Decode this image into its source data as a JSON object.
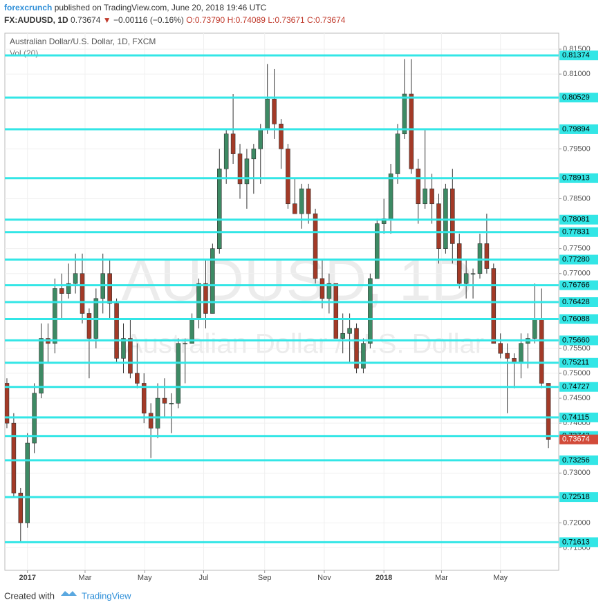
{
  "header": {
    "author": "forexcrunch",
    "published": "published on TradingView.com, June 20, 2018 19:46 UTC",
    "symbol": "FX:AUDUSD, 1D",
    "last": "0.73674",
    "arrow": "▼",
    "change": "−0.00116 (−0.16%)",
    "open": "O:0.73790",
    "high": "H:0.74089",
    "low": "L:0.73671",
    "close": "C:0.73674"
  },
  "footer": {
    "created": "Created with",
    "brand": "TradingView"
  },
  "chart_data": {
    "type": "candlestick",
    "title": "Australian Dollar/U.S. Dollar, 1D, FXCM",
    "indicator": "Vol (20)",
    "watermark": "AUDUSD, 1D",
    "watermark_sub": "Australian Dollar / U.S. Dollar",
    "up_color": "#3d8a64",
    "down_color": "#a33a27",
    "level_color": "#33e6e6",
    "grid": true,
    "xlim": [
      -3.3,
      77.2
    ],
    "xticks": [
      {
        "value": 0,
        "label": "2017"
      },
      {
        "value": 8.4,
        "label": "Mar"
      },
      {
        "value": 17.1,
        "label": "May"
      },
      {
        "value": 25.7,
        "label": "Jul"
      },
      {
        "value": 34.6,
        "label": "Sep"
      },
      {
        "value": 43.3,
        "label": "Nov"
      },
      {
        "value": 52,
        "label": "2018"
      },
      {
        "value": 60.4,
        "label": "Mar"
      },
      {
        "value": 69,
        "label": "May"
      }
    ],
    "ylim": [
      0.7105,
      0.8182
    ],
    "yticks": [
      {
        "value": 0.815,
        "label": "0.81500"
      },
      {
        "value": 0.81,
        "label": "0.81000"
      },
      {
        "value": 0.795,
        "label": "0.79500"
      },
      {
        "value": 0.785,
        "label": "0.78500"
      },
      {
        "value": 0.775,
        "label": "0.77500"
      },
      {
        "value": 0.77,
        "label": "0.77000"
      },
      {
        "value": 0.755,
        "label": "0.75500"
      },
      {
        "value": 0.75,
        "label": "0.75000"
      },
      {
        "value": 0.745,
        "label": "0.74500"
      },
      {
        "value": 0.74,
        "label": "0.74000"
      },
      {
        "value": 0.73,
        "label": "0.73000"
      },
      {
        "value": 0.72,
        "label": "0.72000"
      },
      {
        "value": 0.715,
        "label": "0.71500"
      }
    ],
    "levels": [
      0.81374,
      0.80529,
      0.79894,
      0.78913,
      0.78081,
      0.77831,
      {
        "value": 0.7728,
        "label": "0.77280"
      },
      0.76766,
      0.76428,
      0.76088,
      {
        "value": 0.7566,
        "label": "0.75660"
      },
      0.75211,
      0.74727,
      0.74115,
      0.73743,
      0.73256,
      0.72518,
      0.71613
    ],
    "last_price": 0.73674,
    "x": [
      -3,
      -2,
      -1,
      0,
      1,
      2,
      3,
      4,
      5,
      6,
      7,
      8,
      9,
      10,
      11,
      12,
      13,
      14,
      15,
      16,
      17,
      18,
      19,
      20,
      21,
      22,
      23,
      24,
      25,
      26,
      27,
      28,
      29,
      30,
      31,
      32,
      33,
      34,
      35,
      36,
      37,
      38,
      39,
      40,
      41,
      42,
      43,
      44,
      45,
      46,
      47,
      48,
      49,
      50,
      51,
      52,
      53,
      54,
      55,
      56,
      57,
      58,
      59,
      60,
      61,
      62,
      63,
      64,
      65,
      66,
      67,
      68,
      69,
      70,
      71,
      72,
      73,
      74,
      75,
      76
    ],
    "open": [
      0.748,
      0.74,
      0.726,
      0.72,
      0.736,
      0.746,
      0.757,
      0.756,
      0.767,
      0.766,
      0.768,
      0.77,
      0.762,
      0.757,
      0.765,
      0.77,
      0.764,
      0.753,
      0.757,
      0.75,
      0.748,
      0.742,
      0.739,
      0.745,
      0.744,
      0.744,
      0.756,
      0.756,
      0.761,
      0.768,
      0.762,
      0.775,
      0.791,
      0.798,
      0.794,
      0.788,
      0.793,
      0.795,
      0.799,
      0.805,
      0.8,
      0.795,
      0.784,
      0.782,
      0.787,
      0.782,
      0.769,
      0.765,
      0.768,
      0.757,
      0.758,
      0.759,
      0.751,
      0.756,
      0.769,
      0.78,
      0.781,
      0.79,
      0.798,
      0.806,
      0.791,
      0.784,
      0.787,
      0.784,
      0.775,
      0.787,
      0.776,
      0.768,
      0.77,
      0.77,
      0.776,
      0.771,
      0.756,
      0.754,
      0.753,
      0.752,
      0.756,
      0.757,
      0.761,
      0.748
    ],
    "high": [
      0.749,
      0.742,
      0.727,
      0.738,
      0.748,
      0.76,
      0.76,
      0.769,
      0.77,
      0.772,
      0.774,
      0.774,
      0.763,
      0.767,
      0.774,
      0.773,
      0.765,
      0.76,
      0.761,
      0.756,
      0.75,
      0.744,
      0.748,
      0.749,
      0.746,
      0.757,
      0.757,
      0.762,
      0.769,
      0.773,
      0.776,
      0.795,
      0.799,
      0.806,
      0.796,
      0.795,
      0.796,
      0.8,
      0.812,
      0.811,
      0.801,
      0.796,
      0.789,
      0.788,
      0.788,
      0.783,
      0.773,
      0.77,
      0.768,
      0.762,
      0.762,
      0.76,
      0.757,
      0.77,
      0.781,
      0.785,
      0.792,
      0.8,
      0.813,
      0.813,
      0.793,
      0.799,
      0.79,
      0.786,
      0.788,
      0.791,
      0.778,
      0.773,
      0.771,
      0.778,
      0.782,
      0.772,
      0.758,
      0.756,
      0.754,
      0.758,
      0.758,
      0.768,
      0.767,
      0.748
    ],
    "low": [
      0.739,
      0.725,
      0.716,
      0.719,
      0.734,
      0.745,
      0.752,
      0.754,
      0.761,
      0.765,
      0.766,
      0.76,
      0.749,
      0.755,
      0.762,
      0.761,
      0.752,
      0.75,
      0.749,
      0.747,
      0.74,
      0.733,
      0.737,
      0.741,
      0.738,
      0.743,
      0.748,
      0.756,
      0.759,
      0.759,
      0.762,
      0.774,
      0.788,
      0.792,
      0.785,
      0.783,
      0.786,
      0.788,
      0.798,
      0.797,
      0.791,
      0.783,
      0.782,
      0.779,
      0.78,
      0.768,
      0.763,
      0.762,
      0.757,
      0.754,
      0.752,
      0.75,
      0.75,
      0.755,
      0.769,
      0.778,
      0.778,
      0.788,
      0.797,
      0.79,
      0.78,
      0.783,
      0.78,
      0.772,
      0.774,
      0.772,
      0.767,
      0.765,
      0.765,
      0.769,
      0.77,
      0.756,
      0.753,
      0.742,
      0.747,
      0.749,
      0.751,
      0.756,
      0.747,
      0.735
    ],
    "close": [
      0.74,
      0.726,
      0.72,
      0.736,
      0.746,
      0.757,
      0.756,
      0.767,
      0.766,
      0.768,
      0.77,
      0.762,
      0.757,
      0.765,
      0.77,
      0.764,
      0.753,
      0.757,
      0.75,
      0.748,
      0.742,
      0.739,
      0.745,
      0.744,
      0.744,
      0.756,
      0.756,
      0.761,
      0.768,
      0.762,
      0.775,
      0.791,
      0.798,
      0.794,
      0.788,
      0.793,
      0.795,
      0.799,
      0.805,
      0.8,
      0.795,
      0.784,
      0.782,
      0.787,
      0.782,
      0.769,
      0.765,
      0.768,
      0.757,
      0.758,
      0.759,
      0.751,
      0.756,
      0.769,
      0.78,
      0.781,
      0.79,
      0.798,
      0.806,
      0.791,
      0.784,
      0.787,
      0.784,
      0.775,
      0.787,
      0.776,
      0.768,
      0.77,
      0.77,
      0.776,
      0.771,
      0.756,
      0.754,
      0.753,
      0.752,
      0.756,
      0.757,
      0.761,
      0.748,
      0.73674
    ]
  }
}
